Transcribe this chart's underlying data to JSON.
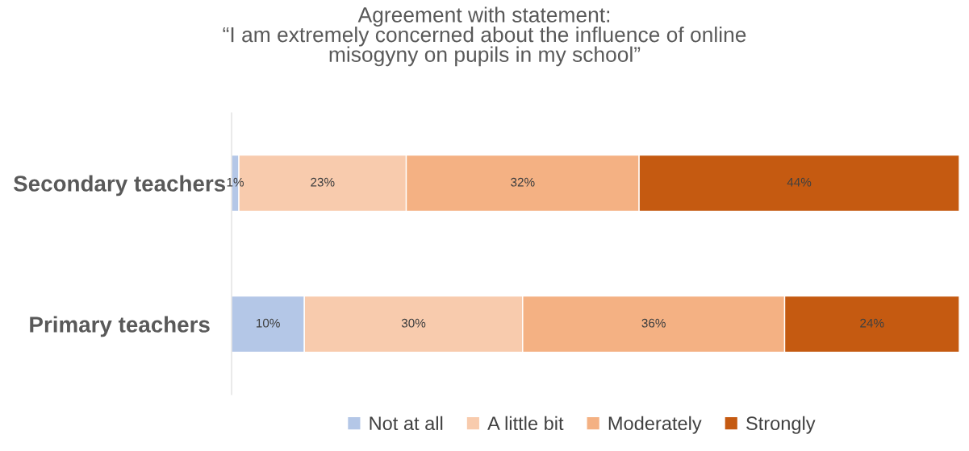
{
  "chart_data": {
    "type": "bar",
    "orientation": "horizontal",
    "stacked": true,
    "title": "Agreement with statement:\n“I am extremely concerned about the influence of online\nmisogyny on pupils in my school”",
    "categories": [
      "Secondary teachers",
      "Primary teachers"
    ],
    "series": [
      {
        "name": "Not at all",
        "color": "#b4c7e7",
        "values": [
          1,
          10
        ],
        "value_labels": [
          "1%",
          "10%"
        ]
      },
      {
        "name": "A little bit",
        "color": "#f8cbad",
        "values": [
          23,
          30
        ],
        "value_labels": [
          "23%",
          "30%"
        ]
      },
      {
        "name": "Moderately",
        "color": "#f4b183",
        "values": [
          32,
          36
        ],
        "value_labels": [
          "32%",
          "36%"
        ]
      },
      {
        "name": "Strongly",
        "color": "#c55a11",
        "values": [
          44,
          24
        ],
        "value_labels": [
          "44%",
          "24%"
        ]
      }
    ],
    "legend": "bottom",
    "grid": false
  }
}
